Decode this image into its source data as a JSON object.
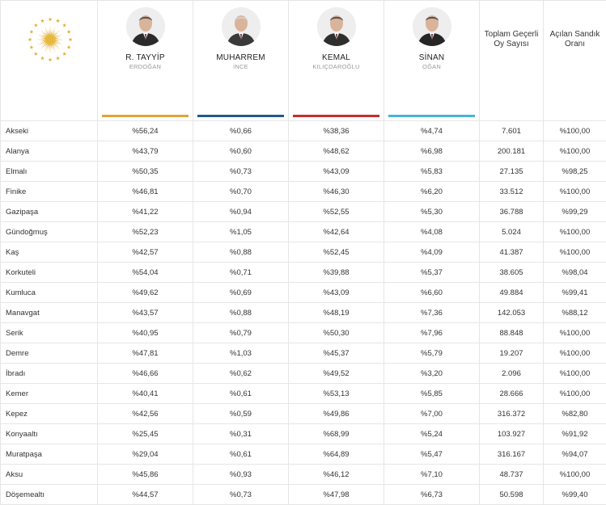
{
  "candidates": [
    {
      "first": "R. TAYYİP",
      "last": "ERDOĞAN",
      "color": "#e2a33b",
      "icon": "portrait-erdogan-icon"
    },
    {
      "first": "MUHARREM",
      "last": "İNCE",
      "color": "#1f5a8c",
      "icon": "portrait-ince-icon"
    },
    {
      "first": "KEMAL",
      "last": "KILIÇDAROĞLU",
      "color": "#c62d2d",
      "icon": "portrait-kilicdaroglu-icon"
    },
    {
      "first": "SİNAN",
      "last": "OĞAN",
      "color": "#47b3d6",
      "icon": "portrait-ogan-icon"
    }
  ],
  "columns": {
    "total_votes_line1": "Toplam Geçerli",
    "total_votes_line2": "Oy Sayısı",
    "opened_line1": "Açılan Sandık",
    "opened_line2": "Oranı"
  },
  "rows": [
    {
      "district": "Akseki",
      "erdogan": "%56,24",
      "ince": "%0,66",
      "kilicdaroglu": "%38,36",
      "ogan": "%4,74",
      "total": "7.601",
      "opened": "%100,00"
    },
    {
      "district": "Alanya",
      "erdogan": "%43,79",
      "ince": "%0,60",
      "kilicdaroglu": "%48,62",
      "ogan": "%6,98",
      "total": "200.181",
      "opened": "%100,00"
    },
    {
      "district": "Elmalı",
      "erdogan": "%50,35",
      "ince": "%0,73",
      "kilicdaroglu": "%43,09",
      "ogan": "%5,83",
      "total": "27.135",
      "opened": "%98,25"
    },
    {
      "district": "Finike",
      "erdogan": "%46,81",
      "ince": "%0,70",
      "kilicdaroglu": "%46,30",
      "ogan": "%6,20",
      "total": "33.512",
      "opened": "%100,00"
    },
    {
      "district": "Gazipaşa",
      "erdogan": "%41,22",
      "ince": "%0,94",
      "kilicdaroglu": "%52,55",
      "ogan": "%5,30",
      "total": "36.788",
      "opened": "%99,29"
    },
    {
      "district": "Gündoğmuş",
      "erdogan": "%52,23",
      "ince": "%1,05",
      "kilicdaroglu": "%42,64",
      "ogan": "%4,08",
      "total": "5.024",
      "opened": "%100,00"
    },
    {
      "district": "Kaş",
      "erdogan": "%42,57",
      "ince": "%0,88",
      "kilicdaroglu": "%52,45",
      "ogan": "%4,09",
      "total": "41.387",
      "opened": "%100,00"
    },
    {
      "district": "Korkuteli",
      "erdogan": "%54,04",
      "ince": "%0,71",
      "kilicdaroglu": "%39,88",
      "ogan": "%5,37",
      "total": "38.605",
      "opened": "%98,04"
    },
    {
      "district": "Kumluca",
      "erdogan": "%49,62",
      "ince": "%0,69",
      "kilicdaroglu": "%43,09",
      "ogan": "%6,60",
      "total": "49.884",
      "opened": "%99,41"
    },
    {
      "district": "Manavgat",
      "erdogan": "%43,57",
      "ince": "%0,88",
      "kilicdaroglu": "%48,19",
      "ogan": "%7,36",
      "total": "142.053",
      "opened": "%88,12"
    },
    {
      "district": "Serik",
      "erdogan": "%40,95",
      "ince": "%0,79",
      "kilicdaroglu": "%50,30",
      "ogan": "%7,96",
      "total": "88.848",
      "opened": "%100,00"
    },
    {
      "district": "Demre",
      "erdogan": "%47,81",
      "ince": "%1,03",
      "kilicdaroglu": "%45,37",
      "ogan": "%5,79",
      "total": "19.207",
      "opened": "%100,00"
    },
    {
      "district": "İbradı",
      "erdogan": "%46,66",
      "ince": "%0,62",
      "kilicdaroglu": "%49,52",
      "ogan": "%3,20",
      "total": "2.096",
      "opened": "%100,00"
    },
    {
      "district": "Kemer",
      "erdogan": "%40,41",
      "ince": "%0,61",
      "kilicdaroglu": "%53,13",
      "ogan": "%5,85",
      "total": "28.666",
      "opened": "%100,00"
    },
    {
      "district": "Kepez",
      "erdogan": "%42,56",
      "ince": "%0,59",
      "kilicdaroglu": "%49,86",
      "ogan": "%7,00",
      "total": "316.372",
      "opened": "%82,80"
    },
    {
      "district": "Konyaaltı",
      "erdogan": "%25,45",
      "ince": "%0,31",
      "kilicdaroglu": "%68,99",
      "ogan": "%5,24",
      "total": "103.927",
      "opened": "%91,92"
    },
    {
      "district": "Muratpaşa",
      "erdogan": "%29,04",
      "ince": "%0,61",
      "kilicdaroglu": "%64,89",
      "ogan": "%5,47",
      "total": "316.167",
      "opened": "%94,07"
    },
    {
      "district": "Aksu",
      "erdogan": "%45,86",
      "ince": "%0,93",
      "kilicdaroglu": "%46,12",
      "ogan": "%7,10",
      "total": "48.737",
      "opened": "%100,00"
    },
    {
      "district": "Döşemealtı",
      "erdogan": "%44,57",
      "ince": "%0,73",
      "kilicdaroglu": "%47,98",
      "ogan": "%6,73",
      "total": "50.598",
      "opened": "%99,40"
    }
  ]
}
